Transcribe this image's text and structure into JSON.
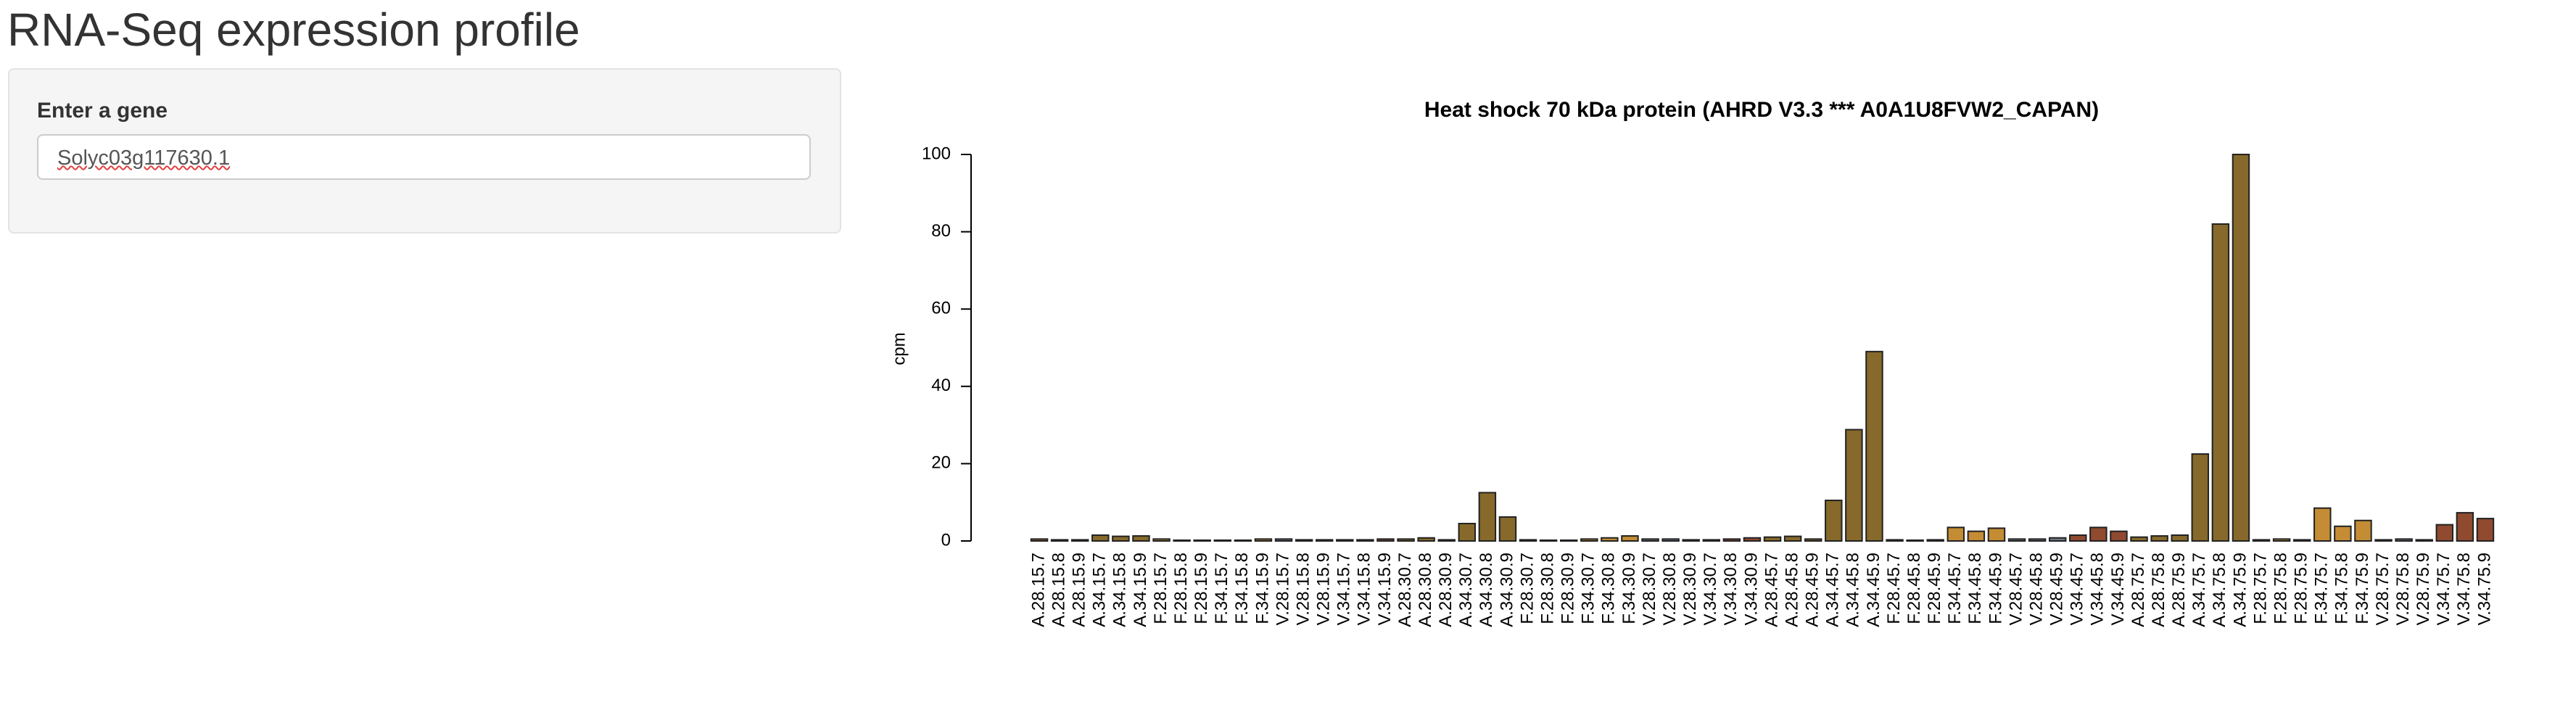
{
  "header": {
    "title": "RNA-Seq expression profile"
  },
  "form": {
    "label": "Enter a gene",
    "value": "Solyc03g117630.1"
  },
  "chart_data": {
    "type": "bar",
    "title": "Heat shock 70 kDa protein (AHRD V3.3 *** A0A1U8FVW2_CAPAN)",
    "y_label": "cpm",
    "categories": [
      "A.28.15.7",
      "A.28.15.8",
      "A.28.15.9",
      "A.34.15.7",
      "A.34.15.8",
      "A.34.15.9",
      "F.28.15.7",
      "F.28.15.8",
      "F.28.15.9",
      "F.34.15.7",
      "F.34.15.8",
      "F.34.15.9",
      "V.28.15.7",
      "V.28.15.8",
      "V.28.15.9",
      "V.34.15.7",
      "V.34.15.8",
      "V.34.15.9",
      "A.28.30.7",
      "A.28.30.8",
      "A.28.30.9",
      "A.34.30.7",
      "A.34.30.8",
      "A.34.30.9",
      "F.28.30.7",
      "F.28.30.8",
      "F.28.30.9",
      "F.34.30.7",
      "F.34.30.8",
      "F.34.30.9",
      "V.28.30.7",
      "V.28.30.8",
      "V.28.30.9",
      "V.34.30.7",
      "V.34.30.8",
      "V.34.30.9",
      "A.28.45.7",
      "A.28.45.8",
      "A.28.45.9",
      "A.34.45.7",
      "A.34.45.8",
      "A.34.45.9",
      "F.28.45.7",
      "F.28.45.8",
      "F.28.45.9",
      "F.34.45.7",
      "F.34.45.8",
      "F.34.45.9",
      "V.28.45.7",
      "V.28.45.8",
      "V.28.45.9",
      "V.34.45.7",
      "V.34.45.8",
      "V.34.45.9",
      "A.28.75.7",
      "A.28.75.8",
      "A.28.75.9",
      "A.34.75.7",
      "A.34.75.8",
      "A.34.75.9",
      "F.28.75.7",
      "F.28.75.8",
      "F.28.75.9",
      "F.34.75.7",
      "F.34.75.8",
      "F.34.75.9",
      "V.28.75.7",
      "V.28.75.8",
      "V.28.75.9",
      "V.34.75.7",
      "V.34.75.8",
      "V.34.75.9"
    ],
    "values": [
      0.5,
      0.3,
      0.3,
      1.5,
      1.2,
      1.3,
      0.5,
      0.2,
      0.2,
      0.2,
      0.2,
      0.5,
      0.5,
      0.3,
      0.3,
      0.3,
      0.3,
      0.5,
      0.5,
      0.8,
      0.3,
      4.5,
      12.5,
      6.2,
      0.3,
      0.2,
      0.2,
      0.5,
      0.8,
      1.3,
      0.5,
      0.5,
      0.3,
      0.3,
      0.5,
      0.8,
      1,
      1.2,
      0.5,
      10.5,
      28.8,
      49,
      0.3,
      0.2,
      0.3,
      3.5,
      2.5,
      3.3,
      0.5,
      0.5,
      0.8,
      1.5,
      3.5,
      2.5,
      1,
      1.3,
      1.5,
      22.5,
      82,
      100,
      0.3,
      0.5,
      0.3,
      8.5,
      3.8,
      5.3,
      0.3,
      0.5,
      0.3,
      4.2,
      7.3,
      5.8
    ],
    "colors": [
      "#86692b",
      "#86692b",
      "#86692b",
      "#86692b",
      "#86692b",
      "#86692b",
      "#c48c34",
      "#c48c34",
      "#c48c34",
      "#c48c34",
      "#c48c34",
      "#c48c34",
      "#6f7a86",
      "#6f7a86",
      "#6f7a86",
      "#8f4a30",
      "#8f4a30",
      "#8f4a30",
      "#86692b",
      "#86692b",
      "#86692b",
      "#86692b",
      "#86692b",
      "#86692b",
      "#c48c34",
      "#c48c34",
      "#c48c34",
      "#c48c34",
      "#c48c34",
      "#c48c34",
      "#6f7a86",
      "#6f7a86",
      "#6f7a86",
      "#8f4a30",
      "#8f4a30",
      "#8f4a30",
      "#86692b",
      "#86692b",
      "#86692b",
      "#86692b",
      "#86692b",
      "#86692b",
      "#c48c34",
      "#c48c34",
      "#c48c34",
      "#c48c34",
      "#c48c34",
      "#c48c34",
      "#6f7a86",
      "#6f7a86",
      "#6f7a86",
      "#8f4a30",
      "#8f4a30",
      "#8f4a30",
      "#86692b",
      "#86692b",
      "#86692b",
      "#86692b",
      "#86692b",
      "#86692b",
      "#c48c34",
      "#c48c34",
      "#c48c34",
      "#c48c34",
      "#c48c34",
      "#c48c34",
      "#6f7a86",
      "#6f7a86",
      "#6f7a86",
      "#8f4a30",
      "#8f4a30",
      "#8f4a30"
    ],
    "ylim": [
      0,
      100
    ],
    "yticks": [
      0,
      20,
      40,
      60,
      80,
      100
    ]
  }
}
